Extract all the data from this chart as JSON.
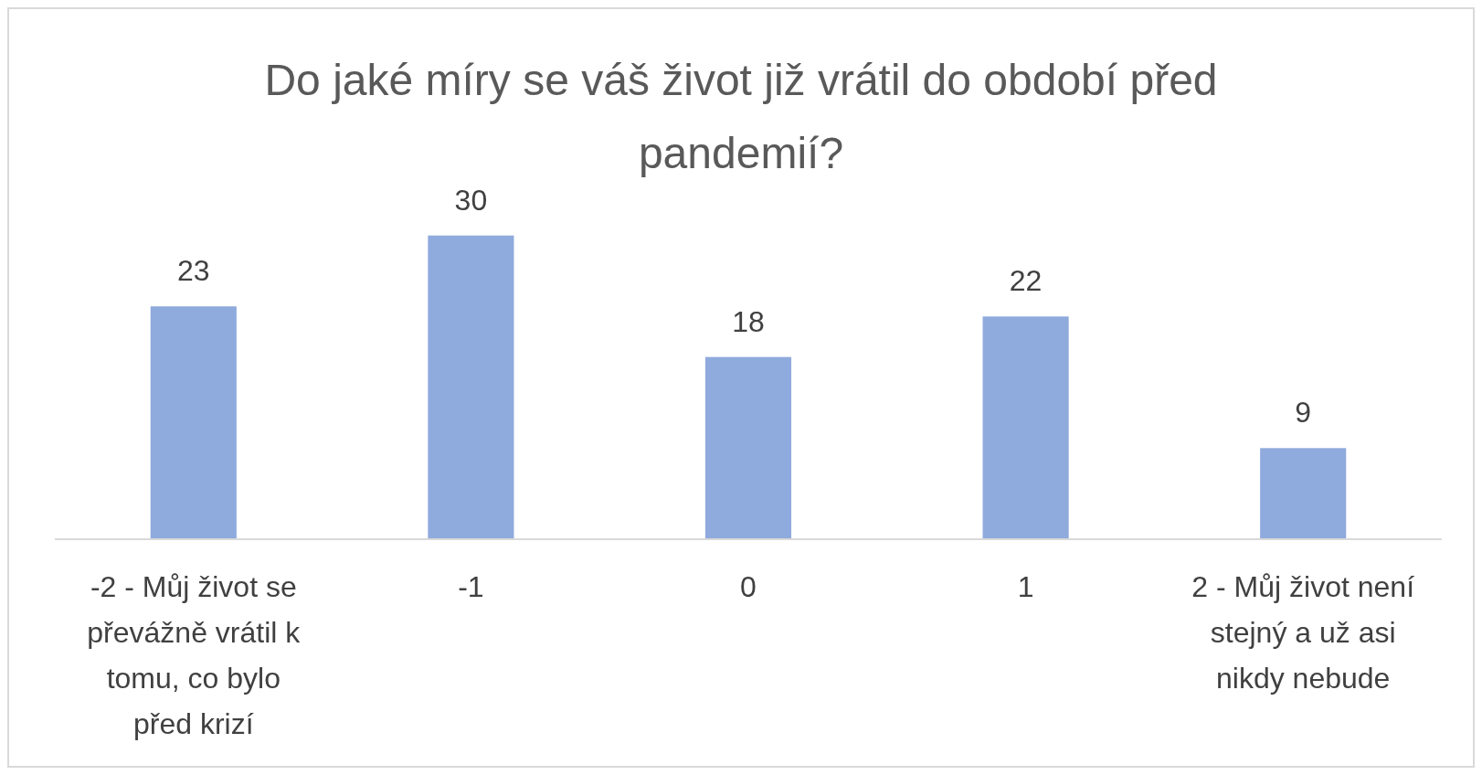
{
  "chart_data": {
    "type": "bar",
    "title": "Do jaké míry se váš život již vrátil do období před pandemií?",
    "categories": [
      "-2 - Můj život se převážně vrátil k tomu, co bylo před krizí",
      "-1",
      "0",
      "1",
      "2 - Můj život není stejný a už asi nikdy nebude"
    ],
    "values": [
      23,
      30,
      18,
      22,
      9
    ],
    "color": "#8faadc",
    "data_labels": true
  }
}
